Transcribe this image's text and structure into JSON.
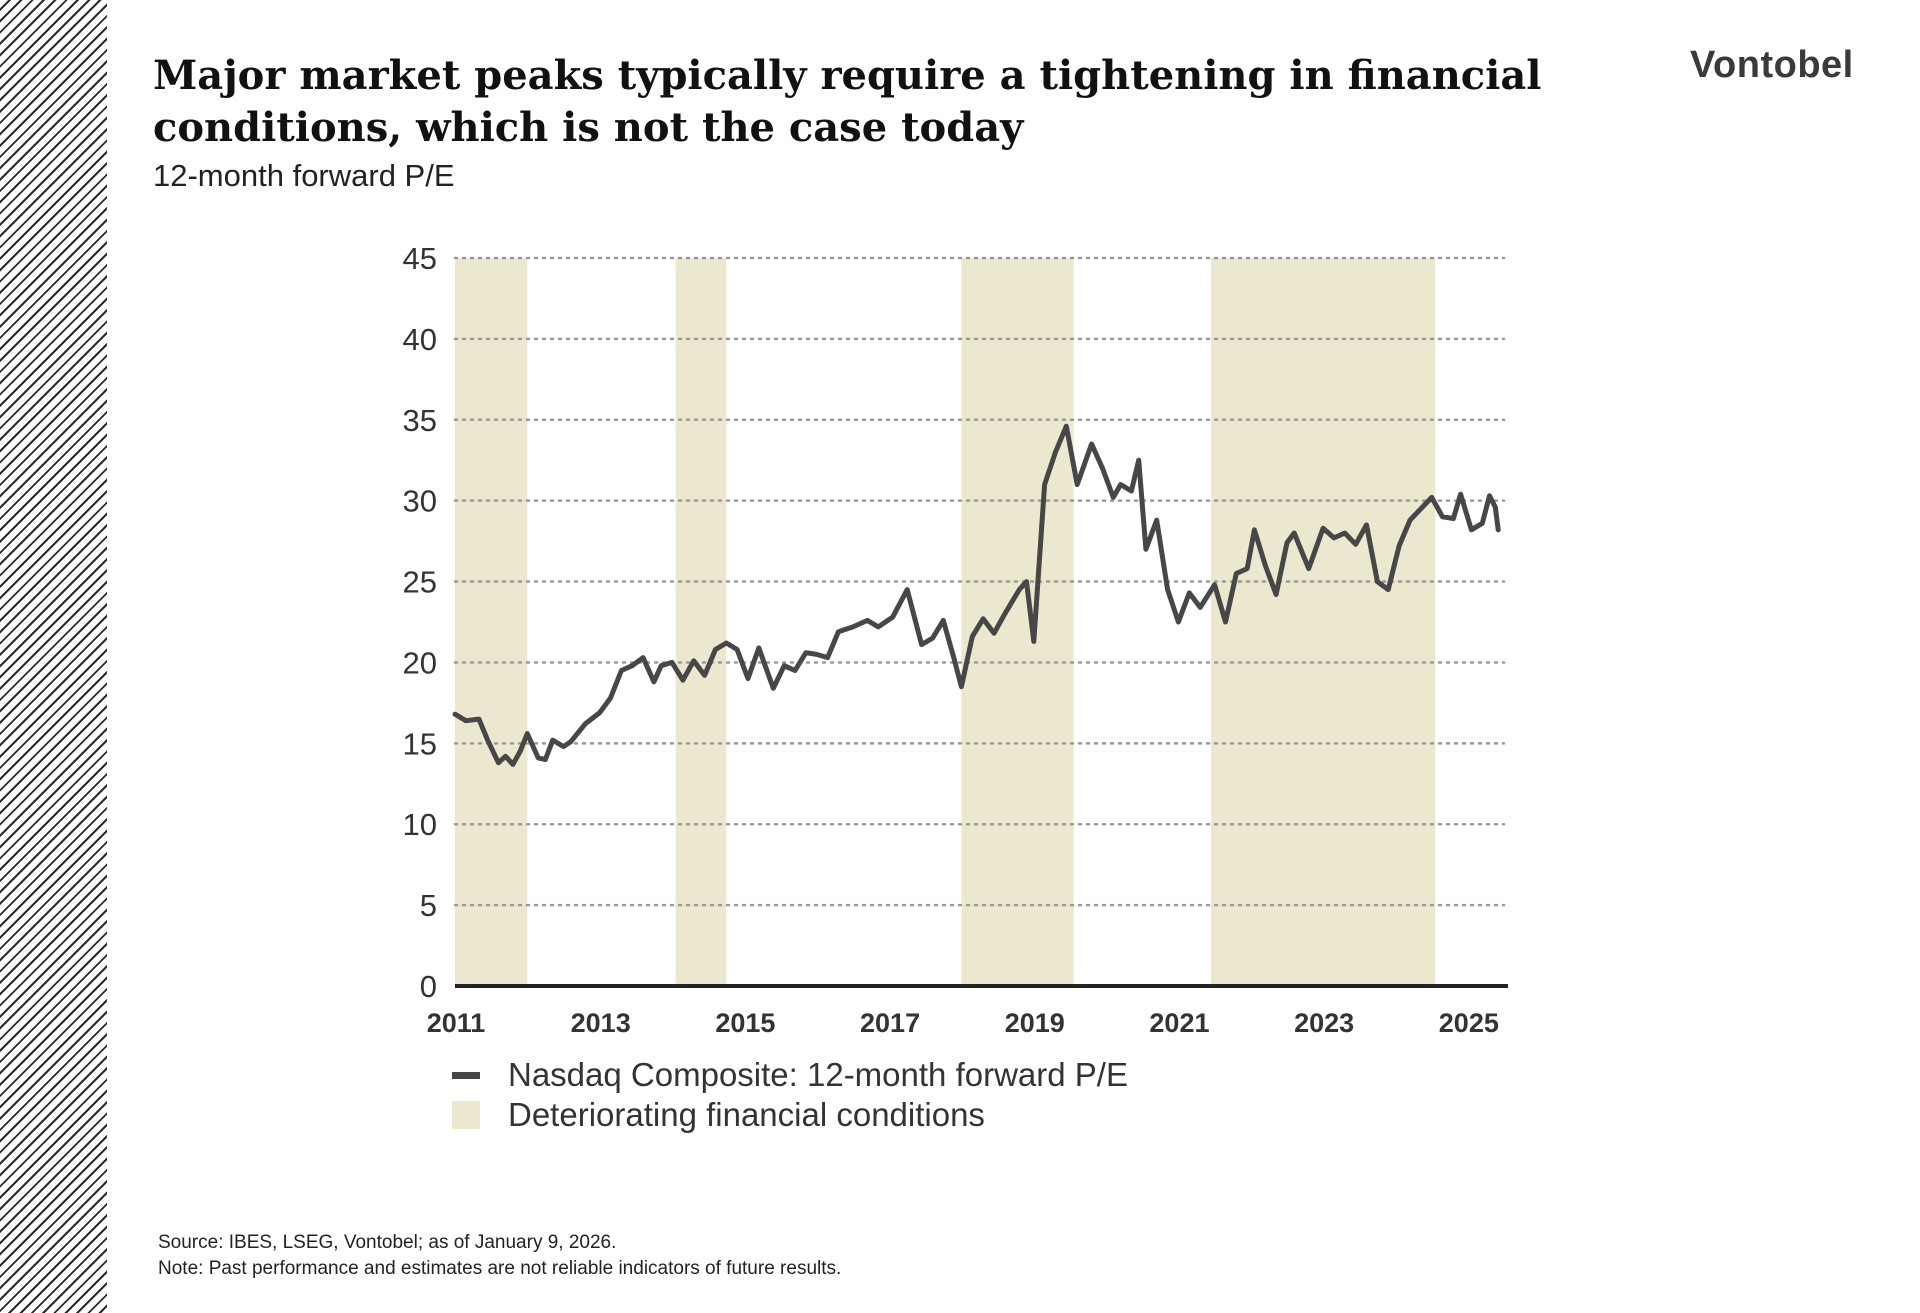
{
  "slide": {
    "title": "Major market peaks typically require a tightening in financial conditions, which is not the case today",
    "subtitle": "12-month forward P/E",
    "logo": "Vontobel",
    "source": "Source: IBES, LSEG, Vontobel; as of January 9, 2026.",
    "note": "Note: Past performance and estimates are not reliable indicators of future results."
  },
  "colors": {
    "line": "#474747",
    "shade": "#ece8cf",
    "grid": "#9a9a9a",
    "axis": "#222222"
  },
  "chart_data": {
    "type": "line",
    "title": "12-month forward P/E",
    "xlabel": "",
    "ylabel": "",
    "xlim": [
      2011,
      2025.5
    ],
    "ylim": [
      0,
      45
    ],
    "y_ticks": [
      "0",
      "5",
      "10",
      "15",
      "20",
      "25",
      "30",
      "35",
      "40",
      "45"
    ],
    "x_ticks": [
      "2011",
      "2013",
      "2015",
      "2017",
      "2019",
      "2021",
      "2023",
      "2025"
    ],
    "grid": "horizontal dotted",
    "legend": "bottom-left",
    "series": [
      {
        "name": "Nasdaq Composite: 12-month forward P/E",
        "x": [
          2011.0,
          2011.15,
          2011.33,
          2011.45,
          2011.6,
          2011.7,
          2011.8,
          2011.9,
          2012.0,
          2012.15,
          2012.25,
          2012.35,
          2012.5,
          2012.6,
          2012.8,
          2013.0,
          2013.15,
          2013.3,
          2013.45,
          2013.6,
          2013.75,
          2013.85,
          2014.0,
          2014.15,
          2014.3,
          2014.45,
          2014.6,
          2014.75,
          2014.9,
          2015.05,
          2015.2,
          2015.4,
          2015.55,
          2015.7,
          2015.85,
          2016.0,
          2016.15,
          2016.3,
          2016.5,
          2016.7,
          2016.85,
          2017.05,
          2017.25,
          2017.45,
          2017.6,
          2017.75,
          2017.9,
          2018.0,
          2018.15,
          2018.3,
          2018.45,
          2018.6,
          2018.8,
          2018.9,
          2019.0,
          2019.15,
          2019.3,
          2019.45,
          2019.6,
          2019.8,
          2019.95,
          2020.1,
          2020.2,
          2020.35,
          2020.45,
          2020.55,
          2020.7,
          2020.85,
          2021.0,
          2021.15,
          2021.3,
          2021.5,
          2021.65,
          2021.8,
          2021.95,
          2022.05,
          2022.2,
          2022.35,
          2022.5,
          2022.6,
          2022.8,
          2023.0,
          2023.15,
          2023.3,
          2023.45,
          2023.6,
          2023.75,
          2023.9,
          2024.05,
          2024.2,
          2024.35,
          2024.5,
          2024.65,
          2024.8,
          2024.9,
          2025.05,
          2025.2,
          2025.3,
          2025.38,
          2025.42
        ],
        "y": [
          16.8,
          16.4,
          16.5,
          15.2,
          13.8,
          14.2,
          13.7,
          14.5,
          15.6,
          14.1,
          14.0,
          15.2,
          14.8,
          15.1,
          16.2,
          16.9,
          17.8,
          19.5,
          19.8,
          20.3,
          18.8,
          19.8,
          20.0,
          18.9,
          20.1,
          19.2,
          20.8,
          21.2,
          20.8,
          19.0,
          20.9,
          18.4,
          19.8,
          19.5,
          20.6,
          20.5,
          20.3,
          21.9,
          22.2,
          22.6,
          22.2,
          22.8,
          24.5,
          21.1,
          21.5,
          22.6,
          20.2,
          18.5,
          21.6,
          22.7,
          21.8,
          23.0,
          24.5,
          25.0,
          21.3,
          31.0,
          33.0,
          34.6,
          31.0,
          33.5,
          32.0,
          30.2,
          31.0,
          30.6,
          32.5,
          27.0,
          28.8,
          24.5,
          22.5,
          24.3,
          23.4,
          24.8,
          22.5,
          25.5,
          25.8,
          28.2,
          26.0,
          24.2,
          27.4,
          28.0,
          25.8,
          28.3,
          27.7,
          28.0,
          27.3,
          28.5,
          25.0,
          24.5,
          27.2,
          28.8,
          29.5,
          30.2,
          29.0,
          28.9,
          30.4,
          28.2,
          28.6,
          30.3,
          29.6,
          28.2
        ]
      }
    ],
    "shaded_periods": {
      "name": "Deteriorating financial conditions",
      "ranges": [
        [
          2011.0,
          2012.0
        ],
        [
          2014.05,
          2014.75
        ],
        [
          2018.0,
          2019.55
        ],
        [
          2021.45,
          2024.55
        ]
      ]
    }
  }
}
